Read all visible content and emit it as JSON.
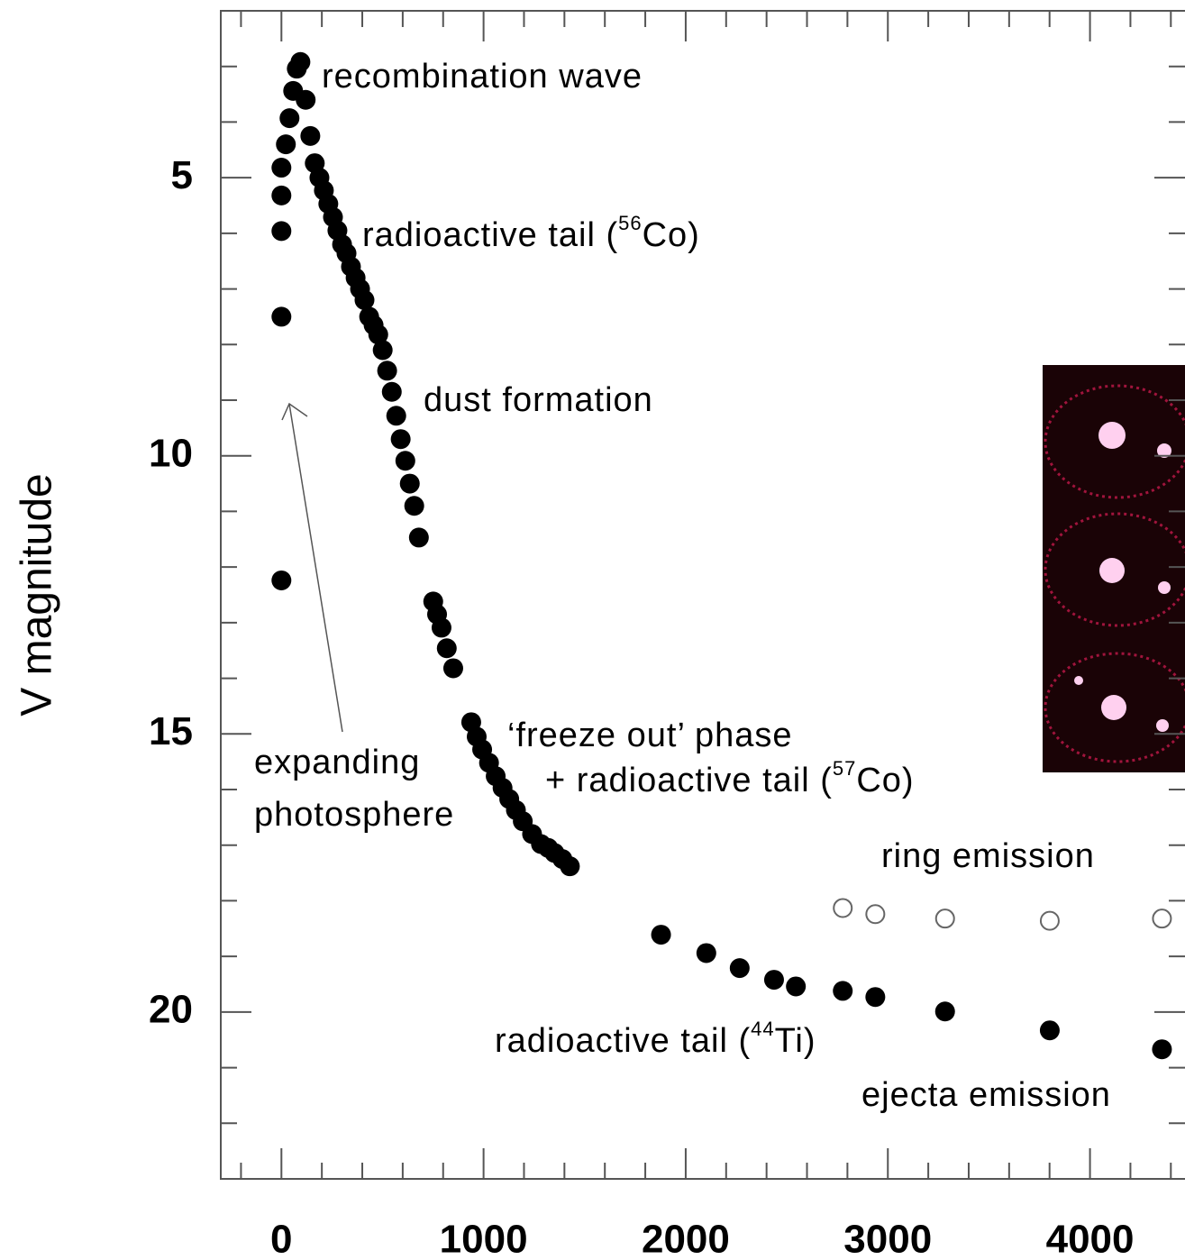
{
  "chart_data": {
    "type": "scatter",
    "ylabel": "V magnitude",
    "xlim": [
      -300,
      4470
    ],
    "ylim": [
      23,
      2
    ],
    "xticks": [
      0,
      1000,
      2000,
      3000,
      4000
    ],
    "yticks": [
      5,
      10,
      15,
      20
    ],
    "xminor": [
      -200,
      200,
      400,
      600,
      800,
      1200,
      1400,
      1600,
      1800,
      2200,
      2400,
      2600,
      2800,
      3200,
      3400,
      3600,
      3800,
      4200,
      4400
    ],
    "yminor": [
      3,
      4,
      6,
      7,
      8,
      9,
      11,
      12,
      13,
      14,
      16,
      17,
      18,
      19,
      21,
      22
    ],
    "series": [
      {
        "marker": "filled",
        "color": "#000000",
        "x": [
          0,
          0,
          0,
          0,
          0,
          22,
          40,
          58,
          76,
          94,
          120,
          143,
          165,
          188,
          210,
          232,
          255,
          277,
          300,
          322,
          344,
          367,
          389,
          411,
          434,
          456,
          479,
          501,
          523,
          546,
          568,
          590,
          613,
          635,
          657,
          680,
          751,
          770,
          792,
          818,
          850,
          939,
          966,
          993,
          1027,
          1060,
          1094,
          1127,
          1160,
          1194,
          1240,
          1284,
          1320,
          1351,
          1390,
          1427,
          1878,
          2102,
          2267,
          2437,
          2545,
          2777,
          2938,
          3283,
          3801,
          4356
        ],
        "values": [
          12.24,
          7.5,
          5.96,
          5.32,
          4.82,
          4.4,
          3.93,
          3.44,
          3.04,
          2.92,
          3.6,
          4.25,
          4.74,
          5.0,
          5.23,
          5.47,
          5.71,
          5.95,
          6.2,
          6.36,
          6.6,
          6.8,
          7.0,
          7.2,
          7.5,
          7.65,
          7.82,
          8.1,
          8.47,
          8.85,
          9.28,
          9.7,
          10.09,
          10.5,
          10.9,
          11.47,
          12.62,
          12.85,
          13.09,
          13.46,
          13.82,
          14.79,
          15.05,
          15.28,
          15.52,
          15.76,
          15.97,
          16.17,
          16.37,
          16.57,
          16.8,
          16.98,
          17.05,
          17.14,
          17.25,
          17.38,
          18.61,
          18.94,
          19.21,
          19.42,
          19.54,
          19.62,
          19.73,
          19.99,
          20.33,
          20.67
        ]
      },
      {
        "marker": "open",
        "color": "#666666",
        "x": [
          2777,
          2938,
          3283,
          3801,
          4356
        ],
        "values": [
          18.13,
          18.24,
          18.32,
          18.36,
          18.32
        ]
      }
    ],
    "annotations": [
      {
        "text": "recombination wave"
      },
      {
        "text": "radioactive tail (",
        "sup": "56",
        "tail": "Co)"
      },
      {
        "text": "dust formation"
      },
      {
        "text": "‘freeze out’ phase"
      },
      {
        "text": "+ radioactive tail (",
        "sup": "57",
        "tail": "Co)"
      },
      {
        "text": "expanding"
      },
      {
        "text": "photosphere"
      },
      {
        "text": "ring emission"
      },
      {
        "text": "radioactive tail (",
        "sup": "44",
        "tail": "Ti)"
      },
      {
        "text": "ejecta emission"
      }
    ]
  }
}
